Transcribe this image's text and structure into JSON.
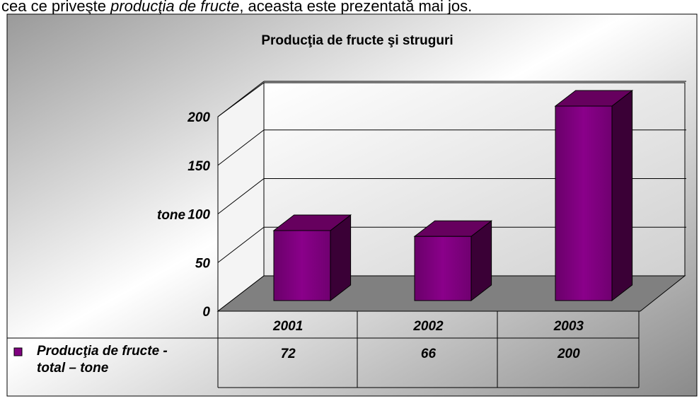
{
  "intro": [
    "cea ce priveşte ",
    "producţia de fructe",
    ", aceasta este prezentată mai jos."
  ],
  "chart_data": {
    "type": "bar",
    "title": "Producţia de fructe şi struguri",
    "y_label": "tone",
    "categories": [
      "2001",
      "2002",
      "2003"
    ],
    "series": [
      {
        "name": "Producţia de fructe - total – tone",
        "color": "#800080",
        "values": [
          72,
          66,
          200
        ]
      }
    ],
    "ylim": [
      0,
      200
    ],
    "yticks": [
      0,
      50,
      100,
      150,
      200
    ],
    "grid": true,
    "legend": "table"
  }
}
